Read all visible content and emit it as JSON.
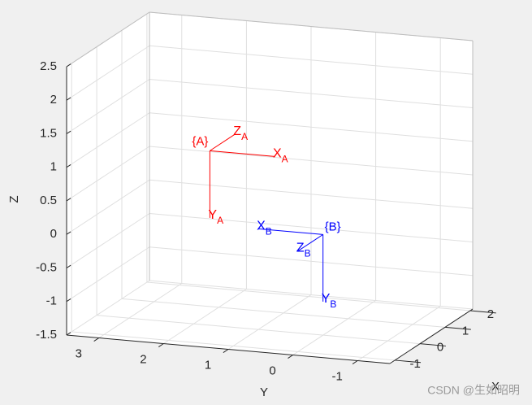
{
  "chart_data": {
    "type": "line3d",
    "xlabel": "X",
    "ylabel": "Y",
    "zlabel": "Z",
    "xlim": [
      -1.2,
      2.1
    ],
    "ylim": [
      -1.5,
      3.5
    ],
    "zlim": [
      -1.5,
      2.5
    ],
    "xticks": [
      -1,
      0,
      1,
      2
    ],
    "yticks": [
      -1,
      0,
      1,
      2,
      3
    ],
    "zticks": [
      -1.5,
      -1,
      -0.5,
      0,
      0.5,
      1,
      1.5,
      2,
      2.5
    ],
    "grid": true,
    "frames": [
      {
        "label": "{A}",
        "subscript": "A",
        "color": "#ff0000",
        "origin": [
          0,
          1.75,
          1.1
        ],
        "axes": [
          {
            "name": "X",
            "end": [
              0,
              0.75,
              1.1
            ]
          },
          {
            "name": "Y",
            "end": [
              0,
              1.75,
              0.1
            ]
          },
          {
            "name": "Z",
            "end": [
              1,
              1.75,
              1.1
            ]
          }
        ]
      },
      {
        "label": "{B}",
        "subscript": "B",
        "color": "#0000ff",
        "origin": [
          0,
          0,
          0
        ],
        "axes": [
          {
            "name": "X",
            "end": [
              0,
              1,
              0
            ]
          },
          {
            "name": "Y",
            "end": [
              0,
              0,
              -1
            ]
          },
          {
            "name": "Z",
            "end": [
              -1,
              0,
              0
            ]
          }
        ]
      }
    ],
    "watermark": "CSDN @生如昭明"
  }
}
